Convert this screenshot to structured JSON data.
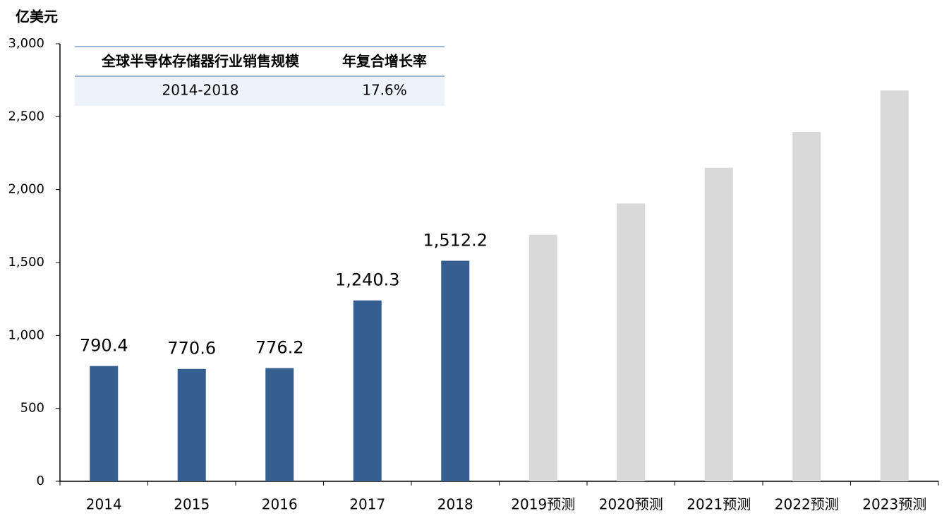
{
  "chart_data": {
    "type": "bar",
    "y_label": "亿美元",
    "categories": [
      "2014",
      "2015",
      "2016",
      "2017",
      "2018",
      "2019预测",
      "2020预测",
      "2021预测",
      "2022预测",
      "2023预测"
    ],
    "values": [
      790.4,
      770.6,
      776.2,
      1240.3,
      1512.2,
      1690,
      1905,
      2150,
      2395,
      2680
    ],
    "value_labels": [
      "790.4",
      "770.6",
      "776.2",
      "1,240.3",
      "1,512.2",
      null,
      null,
      null,
      null,
      null
    ],
    "colors": [
      "#365f91",
      "#365f91",
      "#365f91",
      "#365f91",
      "#365f91",
      "#d9d9d9",
      "#d9d9d9",
      "#d9d9d9",
      "#d9d9d9",
      "#d9d9d9"
    ],
    "ylim": [
      0,
      3000
    ],
    "yticks": [
      0,
      500,
      {
        "value": 1000,
        "label": "1,000"
      },
      {
        "value": 1500,
        "label": "1,500"
      },
      {
        "value": 2000,
        "label": "2,000"
      },
      {
        "value": 2500,
        "label": "2,500"
      },
      {
        "value": 3000,
        "label": "3,000"
      }
    ],
    "grid": false,
    "table": {
      "header": [
        "全球半导体存储器行业销售规模",
        "年复合增长率"
      ],
      "rows": [
        [
          "2014-2018",
          "17.6%"
        ]
      ]
    }
  }
}
